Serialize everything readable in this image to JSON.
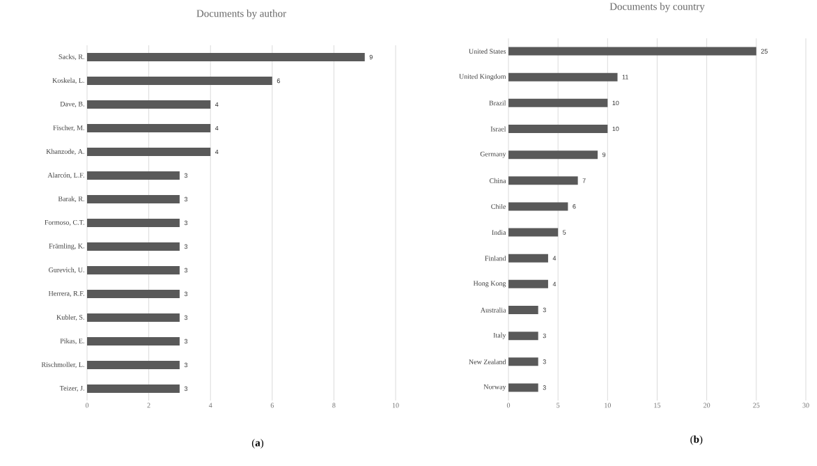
{
  "chart_data": [
    {
      "type": "bar",
      "orientation": "horizontal",
      "title": "Documents by author",
      "categories": [
        "Sacks, R.",
        "Koskela, L.",
        "Dave, B.",
        "Fischer, M.",
        "Khanzode, A.",
        "Alarcón, L.F.",
        "Barak, R.",
        "Formoso, C.T.",
        "Främling, K.",
        "Gurevich, U.",
        "Herrera, R.F.",
        "Kubler, S.",
        "Pikas, E.",
        "Rischmoller, L.",
        "Teizer, J."
      ],
      "values": [
        9,
        6,
        4,
        4,
        4,
        3,
        3,
        3,
        3,
        3,
        3,
        3,
        3,
        3,
        3
      ],
      "color": "#595959",
      "xlim": [
        0,
        10
      ],
      "xticks": [
        0,
        2,
        4,
        6,
        8,
        10
      ],
      "grid": "x",
      "data_labels": true,
      "annotations": [
        "(**a**)"
      ]
    },
    {
      "type": "bar",
      "orientation": "horizontal",
      "title": "Documents by country",
      "categories": [
        "United States",
        "United Kingdom",
        "Brazil",
        "Israel",
        "Germany",
        "China",
        "Chile",
        "India",
        "Finland",
        "Hong Kong",
        "Australia",
        "Italy",
        "New Zealand",
        "Norway"
      ],
      "values": [
        25,
        11,
        10,
        10,
        9,
        7,
        6,
        5,
        4,
        4,
        3,
        3,
        3,
        3
      ],
      "color": "#595959",
      "xlim": [
        0,
        30
      ],
      "xticks": [
        0,
        5,
        10,
        15,
        20,
        25,
        30
      ],
      "grid": "x",
      "data_labels": true,
      "annotations": [
        "(**b**)"
      ]
    }
  ]
}
